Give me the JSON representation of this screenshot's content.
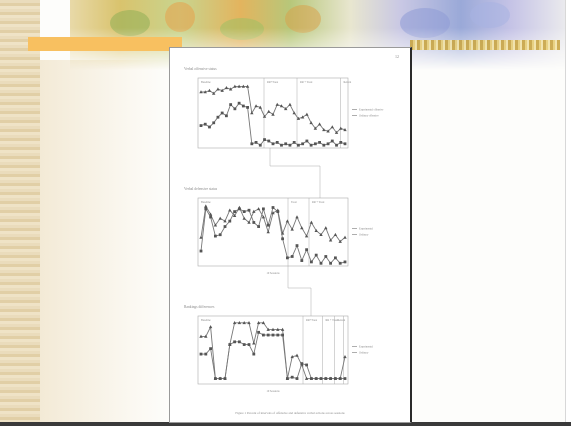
{
  "slide": {
    "colors": {
      "orange_bar": "#f8c060",
      "paper": "#ffffff",
      "line": "#888888",
      "marker": "#555555"
    }
  },
  "figure": {
    "page_number": "12",
    "panels": [
      {
        "title": "Verbal offensive status",
        "phase_labels": [
          "Baseline",
          "RR+Treat",
          "RR + Treat",
          "Return"
        ],
        "legend": [
          "Experimental offensive",
          "Ordinary offensive"
        ],
        "x_label": "",
        "chart_data": {
          "type": "line",
          "x": [
            1,
            2,
            3,
            4,
            5,
            6,
            7,
            8,
            9,
            10,
            11,
            12,
            13,
            14,
            15,
            16,
            17,
            18,
            19,
            20,
            21,
            22,
            23,
            24,
            25,
            26,
            27,
            28,
            29,
            30,
            31,
            32,
            33,
            34,
            35
          ],
          "series": [
            {
              "name": "Experimental offensive",
              "values": [
                80,
                80,
                82,
                78,
                84,
                82,
                86,
                84,
                88,
                88,
                88,
                88,
                50,
                60,
                58,
                45,
                52,
                48,
                62,
                60,
                56,
                62,
                50,
                42,
                44,
                48,
                36,
                28,
                34,
                26,
                24,
                30,
                22,
                28,
                26
              ]
            },
            {
              "name": "Ordinary offensive",
              "values": [
                32,
                34,
                30,
                36,
                44,
                50,
                46,
                62,
                56,
                64,
                60,
                58,
                6,
                8,
                4,
                12,
                10,
                6,
                8,
                4,
                6,
                4,
                8,
                4,
                6,
                10,
                4,
                6,
                8,
                4,
                6,
                10,
                4,
                8,
                6
              ]
            }
          ],
          "ylim": [
            0,
            100
          ]
        }
      },
      {
        "title": "Verbal defensive status",
        "phase_labels": [
          "Baseline",
          "Treat",
          "RR + Treat"
        ],
        "legend": [
          "Experimental",
          "Ordinary"
        ],
        "x_label": "10 Sessions",
        "chart_data": {
          "type": "line",
          "x": [
            1,
            2,
            3,
            4,
            5,
            6,
            7,
            8,
            9,
            10,
            11,
            12,
            13,
            14,
            15,
            16,
            17,
            18,
            19,
            20,
            21,
            22,
            23,
            24,
            25,
            26,
            27,
            28,
            29,
            30,
            31
          ],
          "series": [
            {
              "name": "Experimental",
              "values": [
                42,
                88,
                76,
                60,
                70,
                66,
                82,
                74,
                86,
                70,
                64,
                80,
                84,
                72,
                50,
                78,
                82,
                48,
                66,
                54,
                72,
                56,
                44,
                64,
                52,
                46,
                56,
                38,
                46,
                36,
                42
              ]
            },
            {
              "name": "Ordinary",
              "values": [
                22,
                84,
                72,
                44,
                46,
                58,
                66,
                80,
                84,
                80,
                82,
                64,
                58,
                84,
                60,
                86,
                80,
                40,
                12,
                14,
                30,
                8,
                24,
                6,
                16,
                4,
                14,
                4,
                12,
                4,
                6
              ]
            }
          ],
          "ylim": [
            0,
            100
          ]
        }
      },
      {
        "title": "Rankings differences",
        "phase_labels": [
          "Baseline",
          "RR+Treat",
          "RR + Treat",
          "Return"
        ],
        "legend": [
          "Experimental",
          "Ordinary"
        ],
        "x_label": "10 Sessions",
        "chart_data": {
          "type": "line",
          "x": [
            1,
            2,
            3,
            4,
            5,
            6,
            7,
            8,
            9,
            10,
            11,
            12,
            13,
            14,
            15,
            16,
            17,
            18,
            19,
            20,
            21,
            22,
            23,
            24,
            25,
            26,
            27,
            28,
            29,
            30,
            31
          ],
          "series": [
            {
              "name": "Experimental",
              "values": [
                70,
                70,
                84,
                8,
                8,
                8,
                58,
                90,
                90,
                90,
                90,
                60,
                90,
                90,
                80,
                80,
                80,
                80,
                8,
                40,
                42,
                28,
                8,
                8,
                8,
                8,
                8,
                8,
                8,
                8,
                40
              ]
            },
            {
              "name": "Ordinary",
              "values": [
                44,
                44,
                52,
                8,
                8,
                8,
                58,
                62,
                62,
                58,
                58,
                44,
                76,
                72,
                72,
                72,
                72,
                72,
                8,
                10,
                8,
                30,
                28,
                8,
                8,
                8,
                8,
                8,
                8,
                8,
                8
              ]
            }
          ],
          "ylim": [
            0,
            100
          ]
        }
      }
    ],
    "caption": "Figure 1   Percent of intervals of offensive and defensive verbal actions across sessions"
  }
}
